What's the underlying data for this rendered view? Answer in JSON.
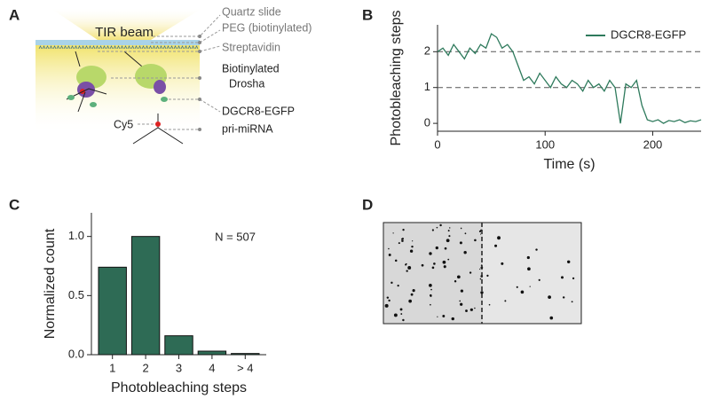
{
  "panels": {
    "a": "A",
    "b": "B",
    "c": "C",
    "d": "D"
  },
  "diagram": {
    "beam": "TIR beam",
    "slide": "Quartz slide",
    "peg": "PEG (biotinylated)",
    "streptavidin": "Streptavidin",
    "drosha_1": "Biotinylated",
    "drosha_2": "Drosha",
    "dgcr8": "DGCR8-EGFP",
    "rna": "pri-miRNA",
    "cy5": "Cy5"
  },
  "chart_data": [
    {
      "type": "line",
      "x": [
        0,
        5,
        10,
        15,
        20,
        25,
        30,
        35,
        40,
        45,
        50,
        55,
        60,
        65,
        70,
        75,
        80,
        85,
        90,
        95,
        100,
        105,
        110,
        115,
        120,
        125,
        130,
        135,
        140,
        145,
        150,
        155,
        160,
        165,
        170,
        175,
        180,
        185,
        190,
        195,
        200,
        205,
        210,
        215,
        220,
        225,
        230,
        235,
        240,
        245
      ],
      "series": [
        {
          "name": "DGCR8-EGFP",
          "color": "#2e7a5c",
          "values": [
            2.0,
            2.1,
            1.9,
            2.2,
            2.0,
            1.8,
            2.1,
            1.95,
            2.2,
            2.1,
            2.5,
            2.4,
            2.1,
            2.2,
            2.0,
            1.6,
            1.2,
            1.3,
            1.1,
            1.4,
            1.2,
            1.0,
            1.3,
            1.1,
            1.0,
            1.2,
            1.1,
            0.9,
            1.2,
            1.0,
            1.1,
            0.9,
            1.2,
            1.0,
            0.0,
            1.1,
            1.0,
            1.2,
            0.5,
            0.1,
            0.05,
            0.1,
            0.0,
            0.08,
            0.05,
            0.1,
            0.02,
            0.07,
            0.05,
            0.1
          ]
        }
      ],
      "xlabel": "Time (s)",
      "ylabel": "Photobleaching steps",
      "xlim": [
        0,
        245
      ],
      "ylim": [
        -0.22,
        2.75
      ],
      "xticks": [
        0,
        100,
        200
      ],
      "yticks": [
        0,
        1,
        2
      ],
      "hlines": [
        1,
        2
      ],
      "legend": "upper right"
    },
    {
      "type": "bar",
      "categories": [
        "1",
        "2",
        "3",
        "4",
        "> 4"
      ],
      "values": [
        0.74,
        1.0,
        0.16,
        0.03,
        0.01
      ],
      "color": "#2e6b55",
      "xlabel": "Photobleaching steps",
      "ylabel": "Normalized count",
      "annotation": "N = 507",
      "ylim": [
        0,
        1.2
      ],
      "yticks": [
        {
          "value": 0,
          "label": "0.0"
        },
        {
          "value": 0.5,
          "label": "0.5"
        },
        {
          "value": 1,
          "label": "1.0"
        }
      ]
    }
  ]
}
